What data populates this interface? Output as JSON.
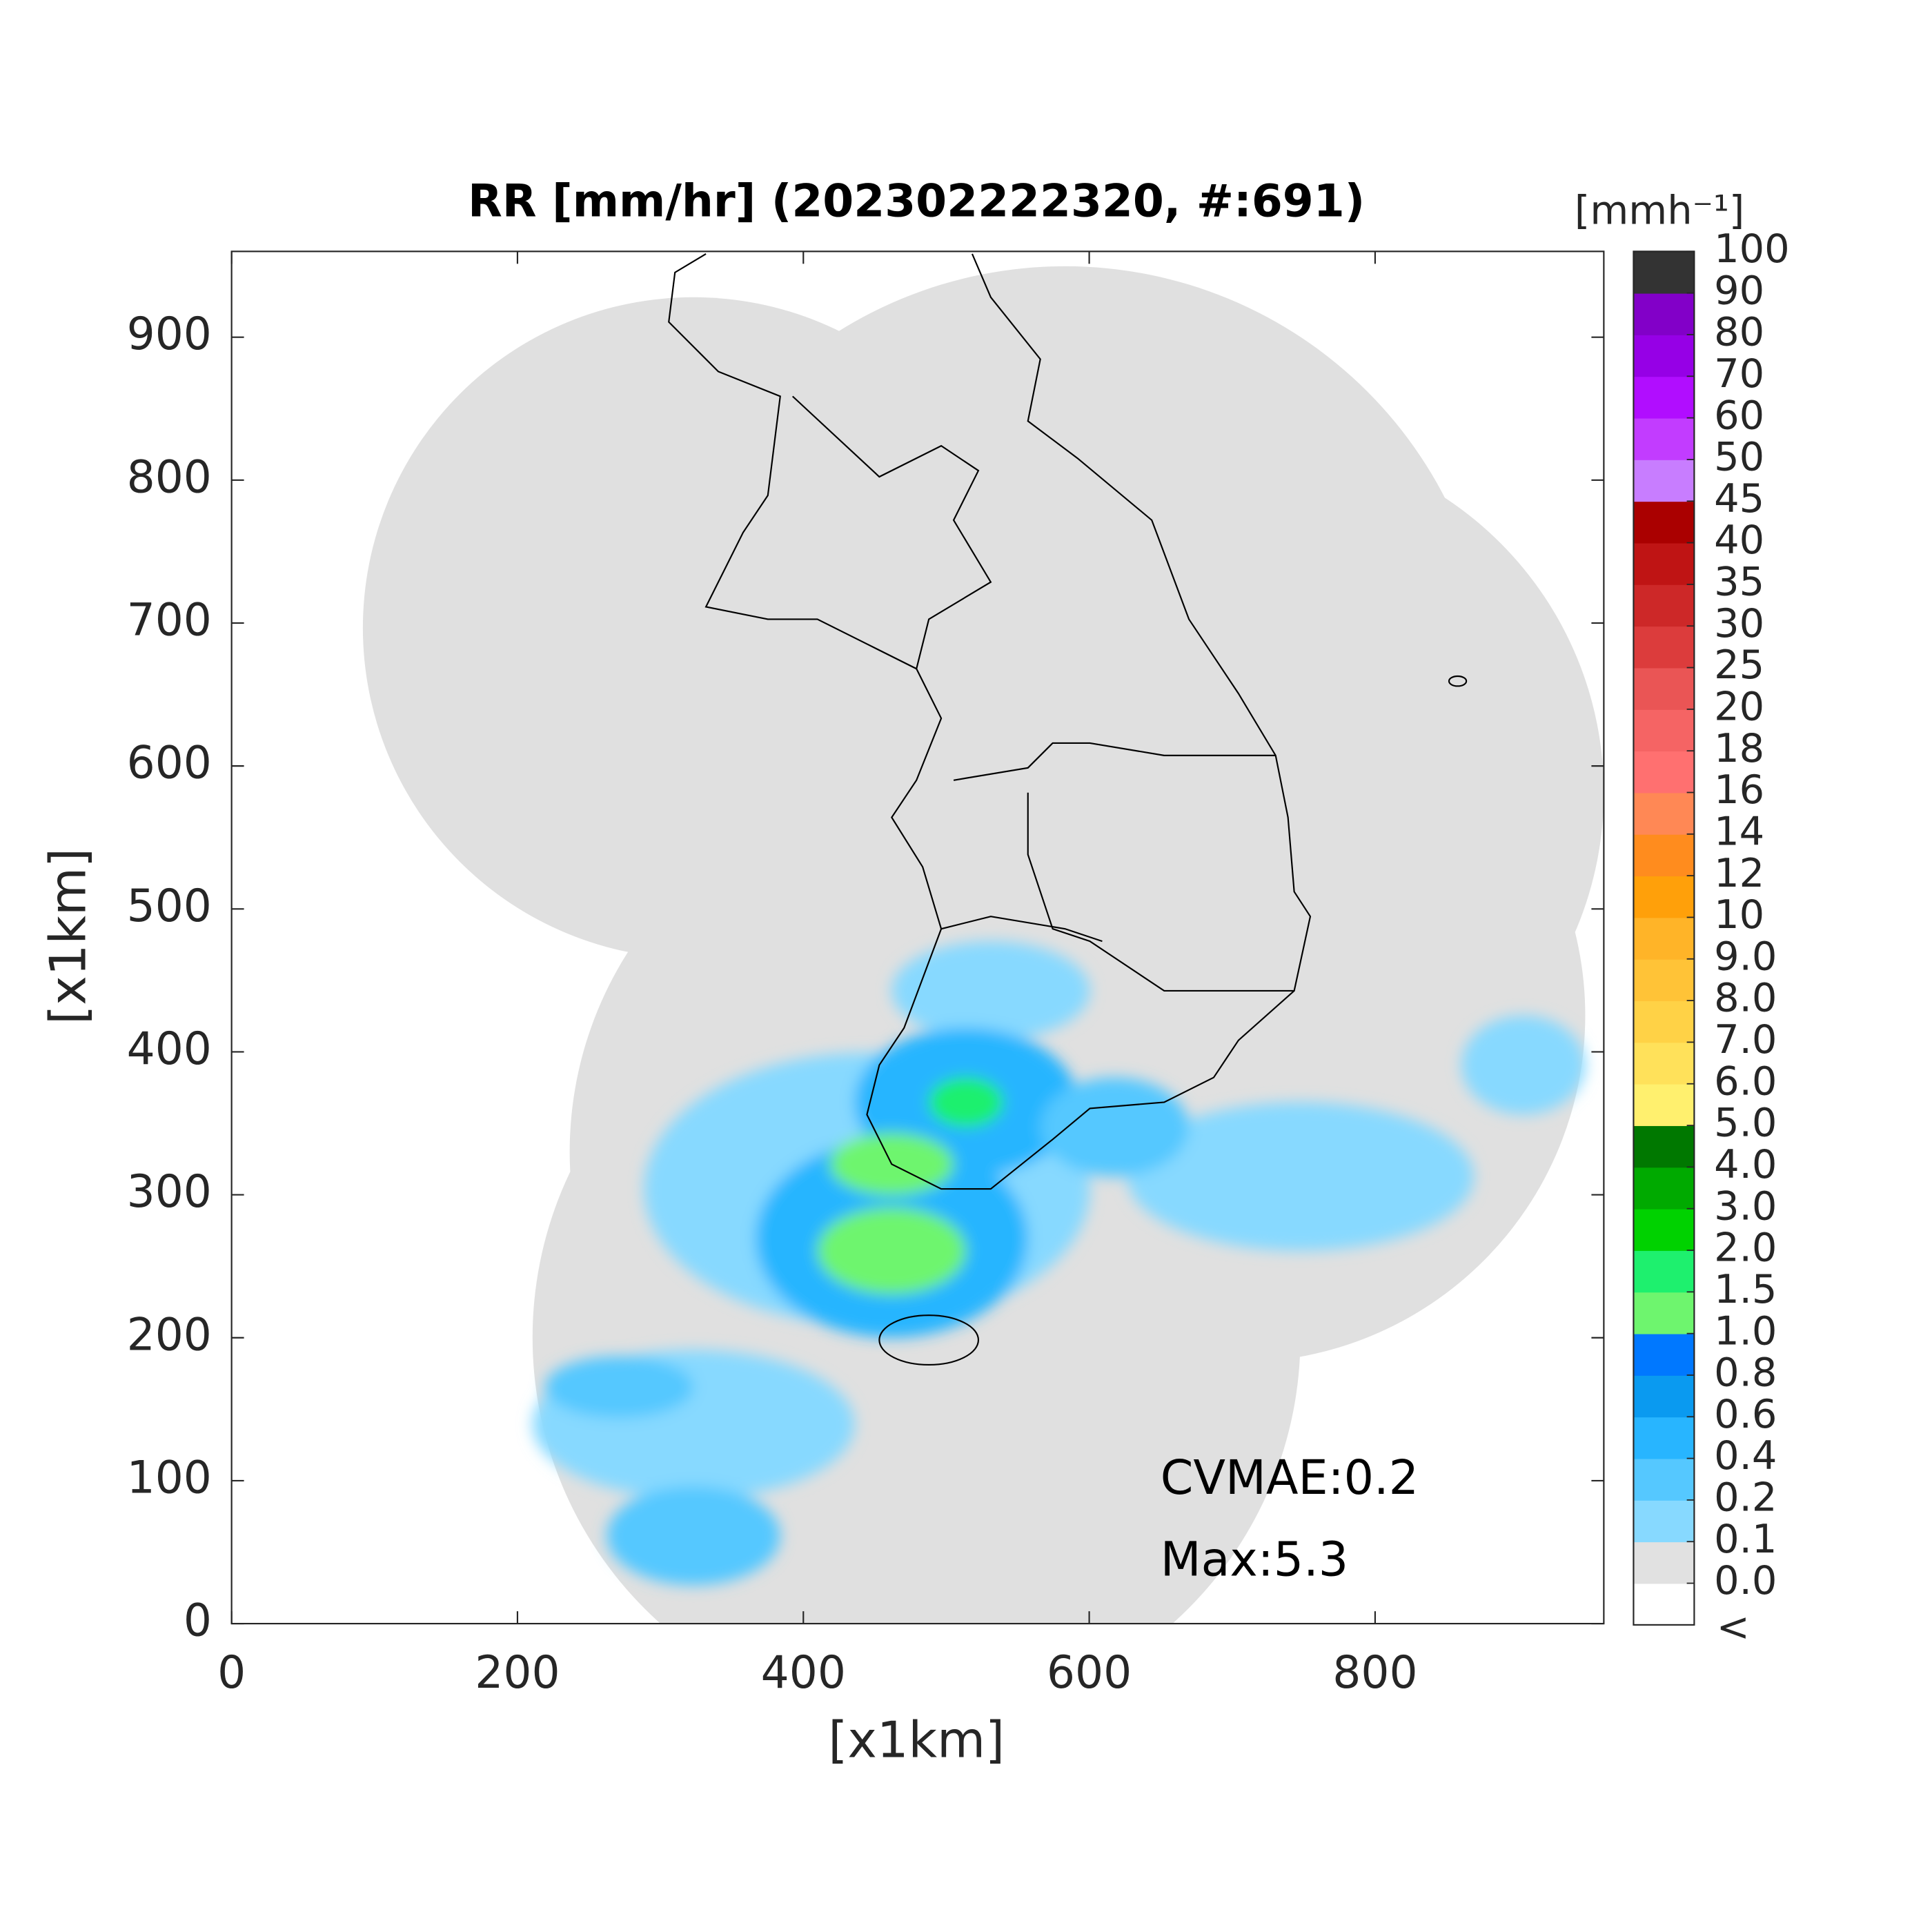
{
  "chart_data": {
    "type": "map",
    "title": "RR [mm/hr] (202302222320, #:691)",
    "x_label": "[x1km]",
    "y_label": "[x1km]",
    "xlim": [
      0,
      960
    ],
    "ylim": [
      0,
      960
    ],
    "xticks": [
      0,
      200,
      400,
      600,
      800
    ],
    "yticks": [
      0,
      100,
      200,
      300,
      400,
      500,
      600,
      700,
      800,
      900
    ],
    "annotations": [
      "CVMAE:0.2",
      "Max:5.3"
    ],
    "colorbar": {
      "label": "[mmh⁻¹]",
      "under_label": "<",
      "under_color": "#ffffff",
      "ticks": [
        {
          "value": 0,
          "label": "0.0"
        },
        0.1,
        0.2,
        0.4,
        0.6,
        0.8,
        {
          "value": 1,
          "label": "1.0"
        },
        1.5,
        {
          "value": 2,
          "label": "2.0"
        },
        {
          "value": 3,
          "label": "3.0"
        },
        {
          "value": 4,
          "label": "4.0"
        },
        {
          "value": 5,
          "label": "5.0"
        },
        {
          "value": 6,
          "label": "6.0"
        },
        {
          "value": 7,
          "label": "7.0"
        },
        {
          "value": 8,
          "label": "8.0"
        },
        {
          "value": 9,
          "label": "9.0"
        },
        10,
        12,
        14,
        16,
        18,
        20,
        25,
        30,
        35,
        40,
        45,
        50,
        60,
        70,
        80,
        90,
        100
      ],
      "colors": [
        "#e1e1e1",
        "#87d9ff",
        "#55c8ff",
        "#28b5ff",
        "#0a9af0",
        "#0078ff",
        "#6ef56e",
        "#1ef06e",
        "#00d200",
        "#00aa00",
        "#007800",
        "#fff06e",
        "#ffe15a",
        "#ffd246",
        "#ffc337",
        "#ffb428",
        "#ffa00a",
        "#ff8c1e",
        "#ff8855",
        "#ff7070",
        "#f56464",
        "#ea5555",
        "#dc3c3c",
        "#cd2828",
        "#bf1414",
        "#aa0000",
        "#c87dff",
        "#c23cff",
        "#b10dff",
        "#9600e6",
        "#8200c8",
        "#333333"
      ]
    }
  }
}
